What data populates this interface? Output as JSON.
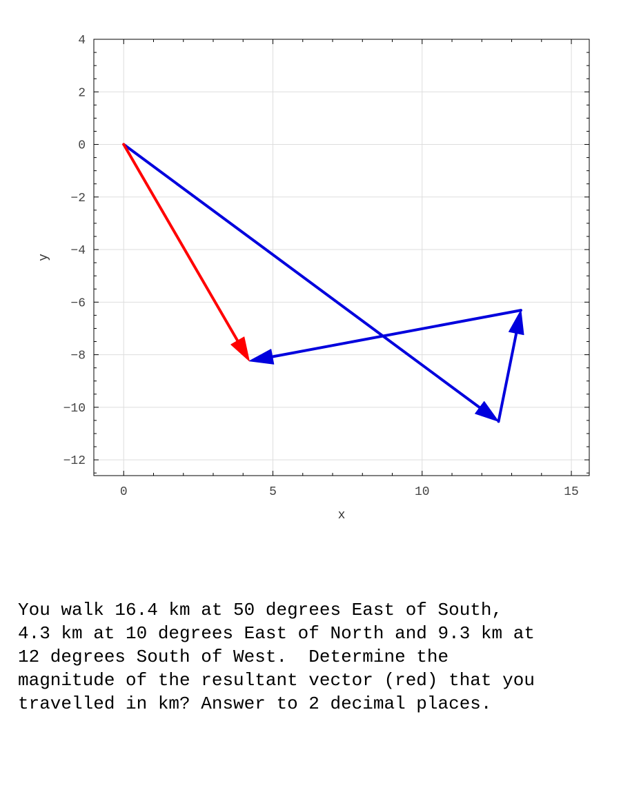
{
  "chart_data": {
    "type": "line",
    "xlabel": "x",
    "ylabel": "y",
    "xlim": [
      -1,
      15.6
    ],
    "ylim": [
      -12.6,
      4
    ],
    "xticks": [
      0,
      5,
      10,
      15
    ],
    "yticks": [
      4,
      2,
      0,
      -2,
      -4,
      -6,
      -8,
      -10,
      -12
    ],
    "grid": true,
    "series": [
      {
        "color": "#0000dd",
        "role": "path",
        "segments": [
          {
            "from": [
              0,
              0
            ],
            "to": [
              12.56,
              -10.54
            ]
          },
          {
            "from": [
              12.56,
              -10.54
            ],
            "to": [
              13.31,
              -6.31
            ]
          },
          {
            "from": [
              13.31,
              -6.31
            ],
            "to": [
              4.21,
              -8.24
            ]
          }
        ]
      },
      {
        "color": "#ff0000",
        "role": "resultant",
        "segments": [
          {
            "from": [
              0,
              0
            ],
            "to": [
              4.21,
              -8.24
            ]
          }
        ]
      }
    ]
  },
  "question": {
    "lines": [
      "You walk 16.4 km at 50 degrees East of South,",
      "4.3 km at 10 degrees East of North and 9.3 km at",
      "12 degrees South of West.  Determine the",
      "magnitude of the resultant vector (red) that you",
      "travelled in km? Answer to 2 decimal places."
    ]
  }
}
